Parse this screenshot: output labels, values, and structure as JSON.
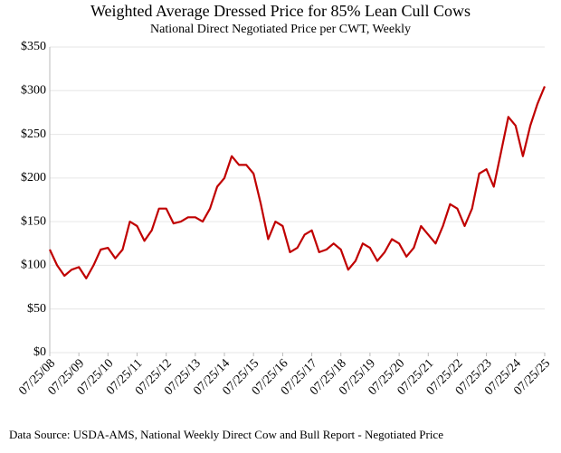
{
  "chart_data": {
    "type": "line",
    "title": "Weighted Average Dressed Price for 85% Lean Cull Cows",
    "subtitle": "National Direct Negotiated Price per CWT, Weekly",
    "source": "Data Source: USDA-AMS, National Weekly Direct Cow and Bull Report - Negotiated Price",
    "x": [
      "07/25/08",
      "10/25/08",
      "01/25/09",
      "04/25/09",
      "07/25/09",
      "10/25/09",
      "01/25/10",
      "04/25/10",
      "07/25/10",
      "10/25/10",
      "01/25/11",
      "04/25/11",
      "07/25/11",
      "10/25/11",
      "01/25/12",
      "04/25/12",
      "07/25/12",
      "10/25/12",
      "01/25/13",
      "04/25/13",
      "07/25/13",
      "10/25/13",
      "01/25/14",
      "04/25/14",
      "07/25/14",
      "10/25/14",
      "01/25/15",
      "04/25/15",
      "07/25/15",
      "10/25/15",
      "01/25/16",
      "04/25/16",
      "07/25/16",
      "10/25/16",
      "01/25/17",
      "04/25/17",
      "07/25/17",
      "10/25/17",
      "01/25/18",
      "04/25/18",
      "07/25/18",
      "10/25/18",
      "01/25/19",
      "04/25/19",
      "07/25/19",
      "10/25/19",
      "01/25/20",
      "04/25/20",
      "07/25/20",
      "10/25/20",
      "01/25/21",
      "04/25/21",
      "07/25/21",
      "10/25/21",
      "01/25/22",
      "04/25/22",
      "07/25/22",
      "10/25/22",
      "01/25/23",
      "04/25/23",
      "07/25/23",
      "10/25/23",
      "01/25/24",
      "04/25/24",
      "07/25/24",
      "10/25/24",
      "01/25/25",
      "04/25/25",
      "07/25/25"
    ],
    "series": [
      {
        "name": "Weighted Average Dressed Price",
        "color": "#c00000",
        "values": [
          118,
          100,
          88,
          95,
          98,
          85,
          100,
          118,
          120,
          108,
          118,
          150,
          145,
          128,
          140,
          165,
          165,
          148,
          150,
          155,
          155,
          150,
          165,
          190,
          200,
          225,
          215,
          215,
          205,
          170,
          130,
          150,
          145,
          115,
          120,
          135,
          140,
          115,
          118,
          125,
          118,
          95,
          105,
          125,
          120,
          105,
          115,
          130,
          125,
          110,
          120,
          145,
          135,
          125,
          145,
          170,
          165,
          145,
          165,
          205,
          210,
          190,
          230,
          270,
          260,
          225,
          260,
          285,
          305
        ]
      }
    ],
    "xlim": [
      "07/25/08",
      "07/25/25"
    ],
    "xticks": [
      "07/25/08",
      "07/25/09",
      "07/25/10",
      "07/25/11",
      "07/25/12",
      "07/25/13",
      "07/25/14",
      "07/25/15",
      "07/25/16",
      "07/25/17",
      "07/25/18",
      "07/25/19",
      "07/25/20",
      "07/25/21",
      "07/25/22",
      "07/25/23",
      "07/25/24",
      "07/25/25"
    ],
    "ylim": [
      0,
      350
    ],
    "yticks": [
      {
        "value": 0,
        "label": "$0"
      },
      {
        "value": 50,
        "label": "$50"
      },
      {
        "value": 100,
        "label": "$100"
      },
      {
        "value": 150,
        "label": "$150"
      },
      {
        "value": 200,
        "label": "$200"
      },
      {
        "value": 250,
        "label": "$250"
      },
      {
        "value": 300,
        "label": "$300"
      },
      {
        "value": 350,
        "label": "$350"
      }
    ],
    "grid": true
  }
}
